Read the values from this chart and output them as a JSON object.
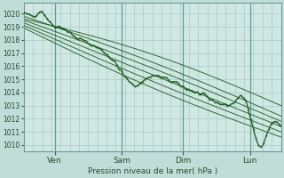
{
  "background_color": "#c0ddd8",
  "plot_bg_color": "#d0e8e4",
  "grid_color_major": "#a0c4bc",
  "grid_color_minor": "#b8d8d4",
  "line_color": "#1a5c1a",
  "xlabel": "Pression niveau de la mer( hPa )",
  "ylim": [
    1009.5,
    1020.8
  ],
  "yticks": [
    1010,
    1011,
    1012,
    1013,
    1014,
    1015,
    1016,
    1017,
    1018,
    1019,
    1020
  ],
  "xtick_positions": [
    0.12,
    0.38,
    0.62,
    0.88
  ],
  "xtick_labels": [
    "Ven",
    "Sam",
    "Dim",
    "Lun"
  ],
  "vline_positions": [
    0.12,
    0.38,
    0.62,
    0.88
  ],
  "figsize": [
    3.2,
    2.0
  ],
  "dpi": 100
}
